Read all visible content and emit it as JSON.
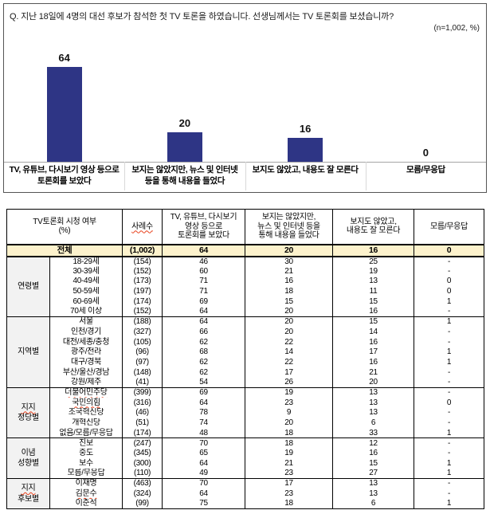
{
  "colors": {
    "bar": "#2e3585",
    "total_row_bg": "#fdf2cc",
    "group_col_bg": "#f2f2f2",
    "squiggle": "#e8401c"
  },
  "chart": {
    "question": "Q. 지난 18일에 4명의 대선 후보가 참석한 첫 TV 토론을 하였습니다. 선생님께서는 TV 토론회를 보셨습니까?",
    "note": "(n=1,002, %)"
  },
  "chart_data": {
    "type": "bar",
    "title": "TV 토론회 시청 여부",
    "categories": [
      "TV, 유튜브, 다시보기 영상 등으로\n토론회를 보았다",
      "보지는 않았지만, 뉴스 및 인터넷\n등을 통해 내용을 들었다",
      "보지도 않았고, 내용도 잘 모른다",
      "모름/무응답"
    ],
    "values": [
      64,
      20,
      16,
      0
    ],
    "xlabel": "",
    "ylabel": "%",
    "ylim": [
      0,
      70
    ],
    "grid": false,
    "data_labels": true,
    "legend": false
  },
  "table": {
    "header": {
      "row_dim": "TV토론회 시청 여부\n(%)",
      "cases": "사례수",
      "answers": [
        "TV, 유튜브, 다시보기\n영상 등으로\n토론회를 보았다",
        "보지는 않았지만,\n뉴스 및 인터넷 등을\n통해 내용을 들었다",
        "보지도 않았고,\n내용도 잘 모른다",
        "모름/무응답"
      ]
    },
    "total": {
      "label": "전체",
      "cases": "(1,002)",
      "values": [
        "64",
        "20",
        "16",
        "0"
      ]
    },
    "groups": [
      {
        "label_lines": [
          "연령별"
        ],
        "sq_lines": [],
        "rows": [
          {
            "label": "18-29세",
            "cases": "(154)",
            "values": [
              "46",
              "30",
              "25",
              "-"
            ]
          },
          {
            "label": "30-39세",
            "cases": "(152)",
            "values": [
              "60",
              "21",
              "19",
              "-"
            ]
          },
          {
            "label": "40-49세",
            "cases": "(173)",
            "values": [
              "71",
              "16",
              "13",
              "0"
            ]
          },
          {
            "label": "50-59세",
            "cases": "(197)",
            "values": [
              "71",
              "18",
              "11",
              "0"
            ]
          },
          {
            "label": "60-69세",
            "cases": "(174)",
            "values": [
              "69",
              "15",
              "15",
              "1"
            ]
          },
          {
            "label": "70세 이상",
            "cases": "(152)",
            "values": [
              "64",
              "20",
              "16",
              "-"
            ]
          }
        ]
      },
      {
        "label_lines": [
          "지역별"
        ],
        "sq_lines": [],
        "rows": [
          {
            "label": "서울",
            "cases": "(188)",
            "values": [
              "64",
              "20",
              "15",
              "1"
            ]
          },
          {
            "label": "인천/경기",
            "cases": "(327)",
            "values": [
              "66",
              "20",
              "14",
              "-"
            ]
          },
          {
            "label": "대전/세종/충청",
            "cases": "(105)",
            "values": [
              "62",
              "22",
              "16",
              "-"
            ]
          },
          {
            "label": "광주/전라",
            "cases": "(96)",
            "values": [
              "68",
              "14",
              "17",
              "1"
            ]
          },
          {
            "label": "대구/경북",
            "cases": "(97)",
            "values": [
              "62",
              "22",
              "16",
              "1"
            ]
          },
          {
            "label": "부산/울산/경남",
            "cases": "(148)",
            "values": [
              "62",
              "17",
              "21",
              "-"
            ]
          },
          {
            "label": "강원/제주",
            "cases": "(41)",
            "values": [
              "54",
              "26",
              "20",
              "-"
            ]
          }
        ]
      },
      {
        "label_lines": [
          "지지",
          "정당별"
        ],
        "sq_lines": [
          0
        ],
        "rows": [
          {
            "label": "더불어민주당",
            "sq": true,
            "cases": "(399)",
            "values": [
              "69",
              "19",
              "13",
              "-"
            ]
          },
          {
            "label": "국민의힘",
            "sq": true,
            "cases": "(316)",
            "values": [
              "64",
              "23",
              "13",
              "0"
            ]
          },
          {
            "label": "조국혁신당",
            "cases": "(46)",
            "values": [
              "78",
              "9",
              "13",
              "-"
            ]
          },
          {
            "label": "개혁신당",
            "cases": "(51)",
            "values": [
              "74",
              "20",
              "6",
              "-"
            ]
          },
          {
            "label": "없음/모름/무응답",
            "cases": "(174)",
            "values": [
              "48",
              "18",
              "33",
              "1"
            ]
          }
        ]
      },
      {
        "label_lines": [
          "이념",
          "성향별"
        ],
        "sq_lines": [],
        "rows": [
          {
            "label": "진보",
            "cases": "(247)",
            "values": [
              "70",
              "18",
              "12",
              "-"
            ]
          },
          {
            "label": "중도",
            "cases": "(345)",
            "values": [
              "65",
              "19",
              "16",
              "-"
            ]
          },
          {
            "label": "보수",
            "cases": "(300)",
            "values": [
              "64",
              "21",
              "15",
              "1"
            ]
          },
          {
            "label": "모름/무응답",
            "cases": "(110)",
            "values": [
              "49",
              "23",
              "27",
              "1"
            ]
          }
        ]
      },
      {
        "label_lines": [
          "지지",
          "후보별"
        ],
        "sq_lines": [
          0
        ],
        "rows": [
          {
            "label": "이재명",
            "cases": "(463)",
            "values": [
              "70",
              "17",
              "13",
              "-"
            ]
          },
          {
            "label": "김문수",
            "sq": true,
            "cases": "(324)",
            "values": [
              "64",
              "23",
              "13",
              "-"
            ]
          },
          {
            "label": "이준석",
            "cases": "(99)",
            "values": [
              "75",
              "18",
              "6",
              "1"
            ]
          }
        ]
      }
    ]
  }
}
